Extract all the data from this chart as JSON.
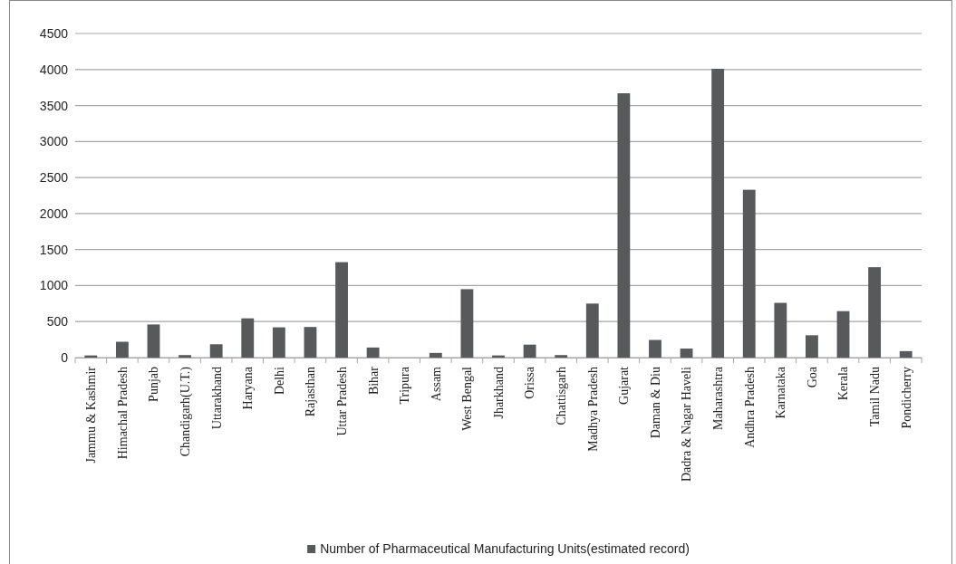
{
  "chart_data": {
    "type": "bar",
    "categories": [
      "Jammu & Kashmir",
      "Himachal Pradesh",
      "Punjab",
      "Chandigarh(U.T.)",
      "Uttarakhand",
      "Haryana",
      "Delhi",
      "Rajasthan",
      "Uttar Pradesh",
      "Bihar",
      "Tripura",
      "Assam",
      "West Bengal",
      "Jharkhand",
      "Orissa",
      "Chattisgarh",
      "Madhya Pradesh",
      "Gujarat",
      "Daman & Diu",
      "Dadra & Nagar Haveli",
      "Maharashtra",
      "Andhra Pradesh",
      "Karnataka",
      "Goa",
      "Kerala",
      "Tamil Nadu",
      "Pondicherry"
    ],
    "series": [
      {
        "name": "Number of Pharmaceutical Manufacturing Units(estimated record)",
        "color": "#58595b",
        "values": [
          30,
          220,
          460,
          35,
          185,
          545,
          420,
          425,
          1325,
          140,
          0,
          65,
          950,
          30,
          180,
          35,
          750,
          3670,
          245,
          125,
          4010,
          2330,
          760,
          310,
          645,
          1255,
          90
        ]
      }
    ],
    "ylim": [
      0,
      4500
    ],
    "yticks": [
      0,
      500,
      1000,
      1500,
      2000,
      2500,
      3000,
      3500,
      4000,
      4500
    ],
    "grid": "y",
    "legend": "bottom"
  }
}
